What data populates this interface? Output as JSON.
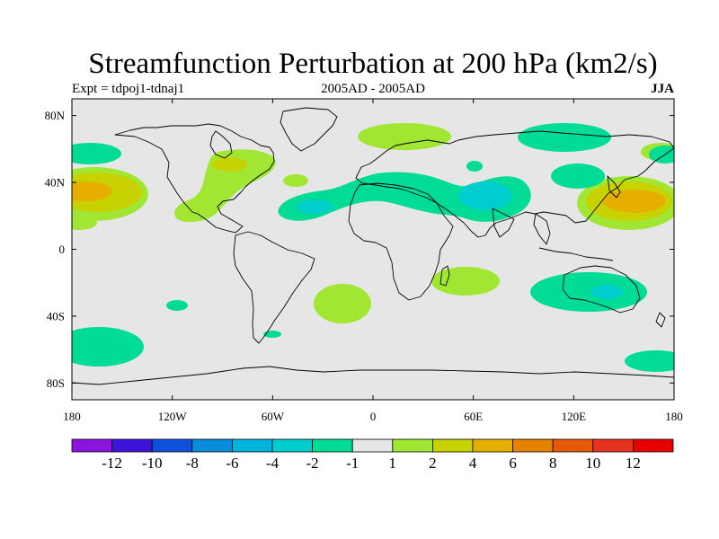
{
  "title": "Streamfunction Perturbation at 200 hPa (km2/s)",
  "left_string": "Expt = tdpoj1-tdnaj1",
  "center_string": "2005AD - 2005AD",
  "right_string": "JJA",
  "colors": {
    "background": "#e6e6e6",
    "coast": "#000000",
    "neg_1_2": "#00dc96",
    "neg_2_4": "#00cdcd",
    "pos_1_2": "#a0e632",
    "pos_2_4": "#c8d200",
    "pos_4_6": "#e6af00"
  },
  "map": {
    "projection": "cylindrical-equidistant",
    "lon_range": [
      -180,
      180
    ],
    "lat_range": [
      -90,
      90
    ],
    "x_ticks": [
      "180",
      "120W",
      "60W",
      "0",
      "60E",
      "120E",
      "180"
    ],
    "y_ticks": [
      "80N",
      "40N",
      "0",
      "40S",
      "80S"
    ]
  },
  "colorbar": {
    "labels": [
      "-12",
      "-10",
      "-8",
      "-6",
      "-4",
      "-2",
      "-1",
      "1",
      "2",
      "4",
      "6",
      "8",
      "10",
      "12"
    ],
    "colors": [
      "#8c14dc",
      "#3c14dc",
      "#0f50dc",
      "#0a8cdc",
      "#00b4dc",
      "#00cdcd",
      "#00dc96",
      "#e6e6e6",
      "#a0e632",
      "#c8d200",
      "#e6af00",
      "#e68200",
      "#e65a0a",
      "#e6321e",
      "#e60000"
    ]
  }
}
